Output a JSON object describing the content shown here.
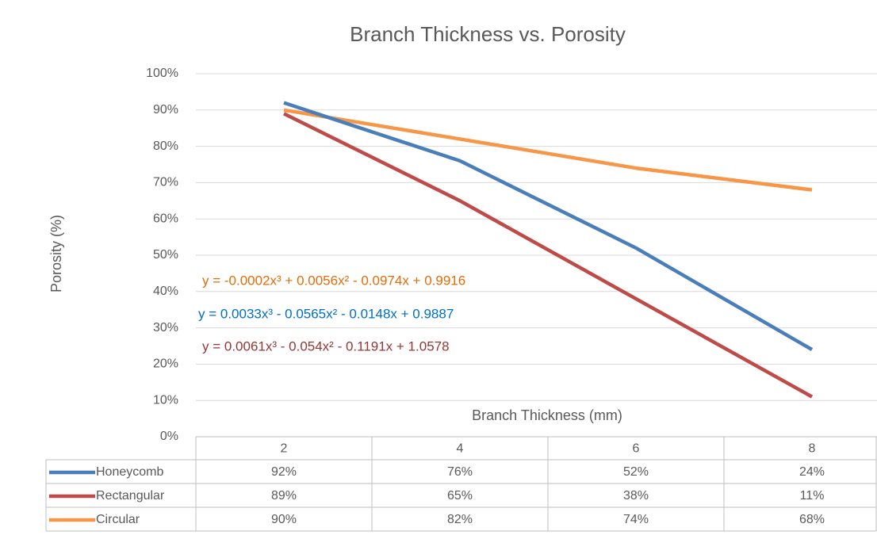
{
  "chart_data": {
    "type": "line",
    "title": "Branch Thickness vs. Porosity",
    "y_label": "Porosity (%)",
    "x_label": "Branch Thickness (mm)",
    "categories": [
      "2",
      "4",
      "6",
      "8"
    ],
    "series": [
      {
        "name": "Honeycomb",
        "color": "#4a7ebb",
        "values": [
          92,
          76,
          52,
          24
        ],
        "value_labels": [
          "92%",
          "76%",
          "52%",
          "24%"
        ]
      },
      {
        "name": "Rectangular",
        "color": "#be4b48",
        "values": [
          89,
          65,
          38,
          11
        ],
        "value_labels": [
          "89%",
          "65%",
          "38%",
          "11%"
        ]
      },
      {
        "name": "Circular",
        "color": "#f79646",
        "values": [
          90,
          82,
          74,
          68
        ],
        "value_labels": [
          "90%",
          "82%",
          "74%",
          "68%"
        ]
      }
    ],
    "ylim": [
      0,
      100
    ],
    "yticks": [
      {
        "value": 0,
        "label": "0%"
      },
      {
        "value": 10,
        "label": "10%"
      },
      {
        "value": 20,
        "label": "20%"
      },
      {
        "value": 30,
        "label": "30%"
      },
      {
        "value": 40,
        "label": "40%"
      },
      {
        "value": 50,
        "label": "50%"
      },
      {
        "value": 60,
        "label": "60%"
      },
      {
        "value": 70,
        "label": "70%"
      },
      {
        "value": 80,
        "label": "80%"
      },
      {
        "value": 90,
        "label": "90%"
      },
      {
        "value": 100,
        "label": "100%"
      }
    ],
    "grid": true,
    "annotations": [
      {
        "text": "y = -0.0002x³ + 0.0056x² - 0.0974x + 0.9916",
        "color": "#e36c09"
      },
      {
        "text": "y = 0.0033x³ - 0.0565x² - 0.0148x + 0.9887",
        "color": "#0070c0"
      },
      {
        "text": "y = 0.0061x³ - 0.054x² - 0.1191x + 1.0578",
        "color": "#953735"
      }
    ]
  }
}
